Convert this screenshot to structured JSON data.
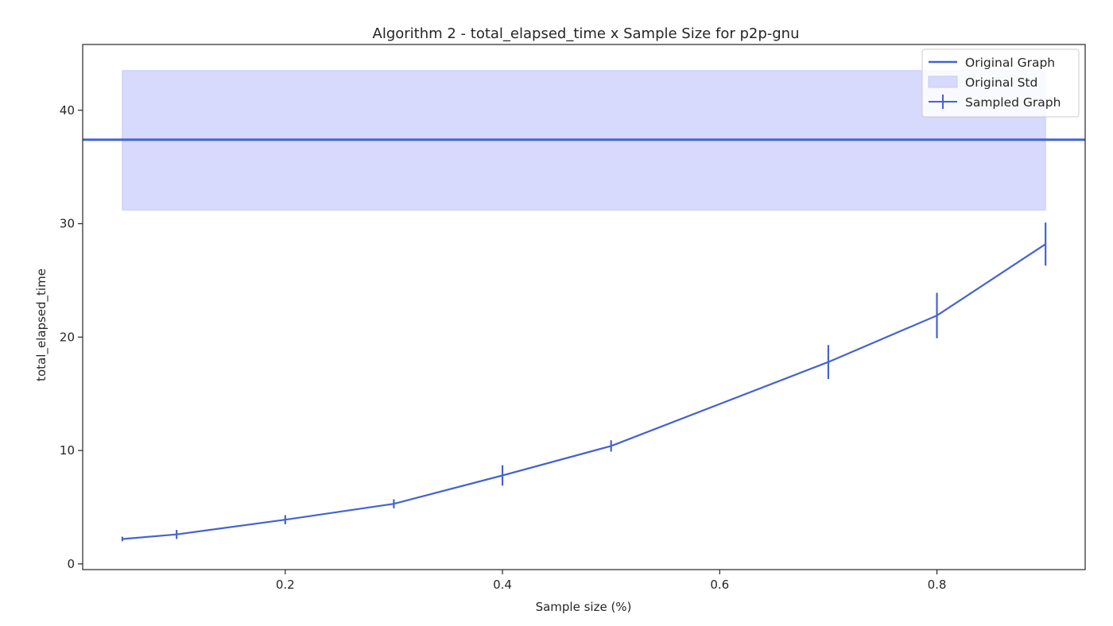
{
  "chart_data": {
    "type": "line",
    "title": "Algorithm 2 - total_elapsed_time x Sample Size for p2p-gnu",
    "xlabel": "Sample size (%)",
    "ylabel": "total_elapsed_time",
    "xlim": [
      0.0135,
      0.9365
    ],
    "ylim": [
      -0.5,
      45.8
    ],
    "xticks": [
      0.2,
      0.4,
      0.6,
      0.8
    ],
    "xtick_labels": [
      "0.2",
      "0.4",
      "0.6",
      "0.8"
    ],
    "yticks": [
      0,
      10,
      20,
      30,
      40
    ],
    "ytick_labels": [
      "0",
      "10",
      "20",
      "30",
      "40"
    ],
    "grid": false,
    "legend_position": "top-right",
    "colors": {
      "line": "#4462d1",
      "band": "#d7dafc",
      "band_edge": "#c6cbf7",
      "axis": "#262626"
    },
    "original": {
      "name": "Original Graph",
      "y": 37.4
    },
    "original_std": {
      "name": "Original Std",
      "x_range": [
        0.05,
        0.9
      ],
      "y_range": [
        31.2,
        43.5
      ]
    },
    "sampled": {
      "name": "Sampled Graph",
      "x": [
        0.05,
        0.1,
        0.2,
        0.3,
        0.4,
        0.5,
        0.7,
        0.8,
        0.9
      ],
      "y": [
        2.2,
        2.6,
        3.9,
        5.3,
        7.8,
        10.4,
        17.8,
        21.9,
        28.2
      ],
      "yerr": [
        0.2,
        0.4,
        0.4,
        0.4,
        0.9,
        0.5,
        1.5,
        2.0,
        1.9
      ]
    }
  }
}
